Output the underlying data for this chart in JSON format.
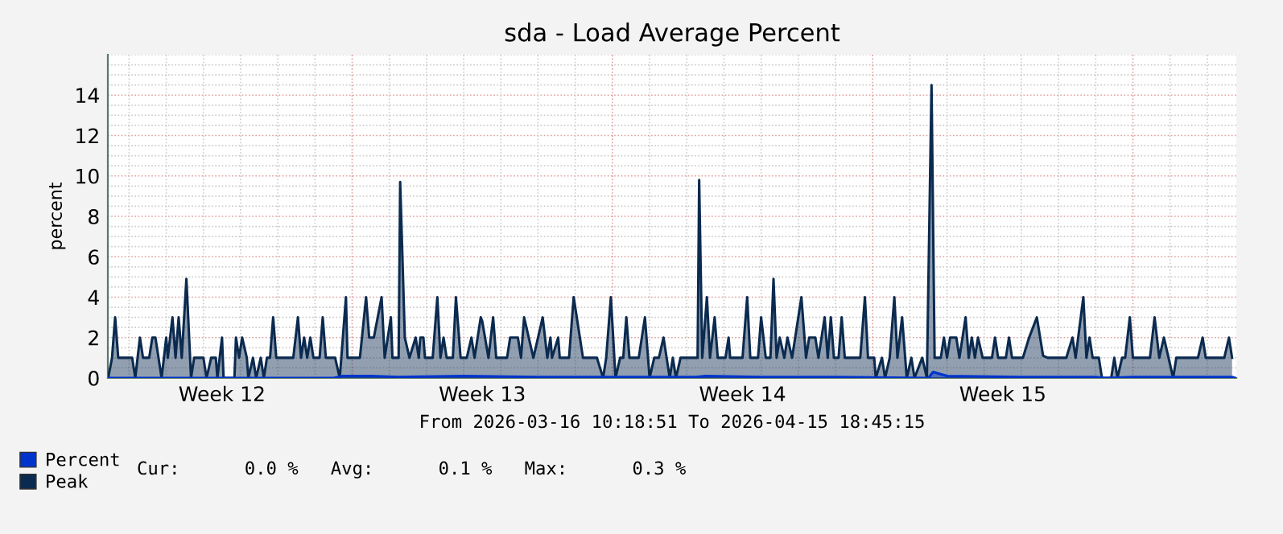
{
  "chart_data": {
    "type": "area",
    "title": "sda - Load Average Percent",
    "xlabel": "From 2026-03-16 10:18:51 To 2026-04-15 18:45:15",
    "ylabel": "percent",
    "xlim": [
      "2026-03-16T10:18",
      "2026-04-15T18:45"
    ],
    "xticks": [
      {
        "value": "2026-03-19T12:00",
        "label": "Week 12"
      },
      {
        "value": "2026-03-26T12:00",
        "label": "Week 13"
      },
      {
        "value": "2026-04-02T12:00",
        "label": "Week 14"
      },
      {
        "value": "2026-04-09T12:00",
        "label": "Week 15"
      }
    ],
    "ylim": [
      0,
      16
    ],
    "yticks": [
      0,
      2,
      4,
      6,
      8,
      10,
      12,
      14
    ],
    "grid": true,
    "legend": "bottom left",
    "annotations": [
      "Cur:      0.0 %   Avg:      0.1 %   Max:      0.3 %"
    ],
    "series": [
      {
        "name": "Percent",
        "color": "#0033cc",
        "x": [
          "2026-03-16T10:30",
          "2026-03-22T12:00",
          "2026-03-22T18:00",
          "2026-03-23T12:00",
          "2026-03-24T06:00",
          "2026-03-26T00:00",
          "2026-03-28T00:00",
          "2026-03-30T00:00",
          "2026-04-01T06:00",
          "2026-04-01T12:00",
          "2026-04-03T00:00",
          "2026-04-05T00:00",
          "2026-04-07T12:00",
          "2026-04-07T15:00",
          "2026-04-08T00:00",
          "2026-04-10T00:00",
          "2026-04-12T00:00",
          "2026-04-12T06:00",
          "2026-04-13T00:00",
          "2026-04-15T16:00",
          "2026-04-15T18:00"
        ],
        "values": [
          0,
          0,
          0.1,
          0.1,
          0.05,
          0.1,
          0.05,
          0.05,
          0.05,
          0.1,
          0.05,
          0.05,
          0,
          0.3,
          0.1,
          0.05,
          0.05,
          0,
          0.05,
          0.05,
          0
        ]
      },
      {
        "name": "Peak",
        "color": "#0b2a4f",
        "x": [
          "2026-03-16T10:30",
          "2026-03-16T13:00",
          "2026-03-16T15:00",
          "2026-03-16T17:00",
          "2026-03-17T02:00",
          "2026-03-17T04:00",
          "2026-03-17T07:00",
          "2026-03-17T09:00",
          "2026-03-17T13:00",
          "2026-03-17T15:00",
          "2026-03-17T17:00",
          "2026-03-17T19:00",
          "2026-03-17T21:00",
          "2026-03-18T00:00",
          "2026-03-18T01:00",
          "2026-03-18T04:00",
          "2026-03-18T06:00",
          "2026-03-18T08:00",
          "2026-03-18T10:00",
          "2026-03-18T13:00",
          "2026-03-18T16:00",
          "2026-03-18T18:00",
          "2026-03-19T00:00",
          "2026-03-19T02:00",
          "2026-03-19T05:00",
          "2026-03-19T08:00",
          "2026-03-19T09:00",
          "2026-03-19T12:00",
          "2026-03-19T13:00",
          "2026-03-19T20:00",
          "2026-03-19T21:00",
          "2026-03-19T23:00",
          "2026-03-20T01:00",
          "2026-03-20T04:00",
          "2026-03-20T05:00",
          "2026-03-20T08:00",
          "2026-03-20T10:00",
          "2026-03-20T13:00",
          "2026-03-20T15:00",
          "2026-03-20T17:00",
          "2026-03-20T19:00",
          "2026-03-20T21:00",
          "2026-03-20T23:00",
          "2026-03-21T10:00",
          "2026-03-21T13:00",
          "2026-03-21T15:00",
          "2026-03-21T17:00",
          "2026-03-21T19:00",
          "2026-03-21T21:00",
          "2026-03-21T23:00",
          "2026-03-22T03:00",
          "2026-03-22T05:00",
          "2026-03-22T07:00",
          "2026-03-22T13:00",
          "2026-03-22T16:00",
          "2026-03-22T17:00",
          "2026-03-22T20:00",
          "2026-03-22T21:00",
          "2026-03-23T05:00",
          "2026-03-23T09:00",
          "2026-03-23T11:00",
          "2026-03-23T14:00",
          "2026-03-23T19:00",
          "2026-03-23T21:00",
          "2026-03-24T01:00",
          "2026-03-24T02:00",
          "2026-03-24T06:00",
          "2026-03-24T07:00",
          "2026-03-24T10:00",
          "2026-03-24T13:00",
          "2026-03-24T17:00",
          "2026-03-24T19:00",
          "2026-03-24T20:00",
          "2026-03-24T22:00",
          "2026-03-24T23:00",
          "2026-03-25T04:00",
          "2026-03-25T07:00",
          "2026-03-25T09:00",
          "2026-03-25T11:00",
          "2026-03-25T13:00",
          "2026-03-25T17:00",
          "2026-03-25T19:00",
          "2026-03-25T22:00",
          "2026-03-26T02:00",
          "2026-03-26T05:00",
          "2026-03-26T07:00",
          "2026-03-26T11:00",
          "2026-03-26T12:00",
          "2026-03-26T16:00",
          "2026-03-26T19:00",
          "2026-03-26T21:00",
          "2026-03-27T04:00",
          "2026-03-27T06:00",
          "2026-03-27T11:00",
          "2026-03-27T13:00",
          "2026-03-27T15:00",
          "2026-03-27T18:00",
          "2026-03-27T21:00",
          "2026-03-28T03:00",
          "2026-03-28T06:00",
          "2026-03-28T08:00",
          "2026-03-28T09:00",
          "2026-03-28T13:00",
          "2026-03-28T14:00",
          "2026-03-28T20:00",
          "2026-03-28T23:00",
          "2026-03-29T03:00",
          "2026-03-29T05:00",
          "2026-03-29T14:00",
          "2026-03-29T18:00",
          "2026-03-29T20:00",
          "2026-03-29T23:00",
          "2026-03-30T02:00",
          "2026-03-30T05:00",
          "2026-03-30T07:00",
          "2026-03-30T09:00",
          "2026-03-30T11:00",
          "2026-03-30T17:00",
          "2026-03-30T21:00",
          "2026-03-31T00:00",
          "2026-03-31T03:00",
          "2026-03-31T06:00",
          "2026-03-31T09:00",
          "2026-03-31T11:00",
          "2026-03-31T13:00",
          "2026-03-31T15:00",
          "2026-03-31T17:00",
          "2026-03-31T20:00",
          "2026-04-01T07:00",
          "2026-04-01T08:00",
          "2026-04-01T10:00",
          "2026-04-01T13:00",
          "2026-04-01T15:00",
          "2026-04-01T18:00",
          "2026-04-01T20:00",
          "2026-04-02T01:00",
          "2026-04-02T03:00",
          "2026-04-02T04:00",
          "2026-04-02T12:00",
          "2026-04-02T15:00",
          "2026-04-02T17:00",
          "2026-04-02T22:00",
          "2026-04-03T00:00",
          "2026-04-03T03:00",
          "2026-04-03T06:00",
          "2026-04-03T08:00",
          "2026-04-03T10:00",
          "2026-04-03T12:00",
          "2026-04-03T15:00",
          "2026-04-03T17:00",
          "2026-04-03T20:00",
          "2026-04-03T22:00",
          "2026-04-04T02:00",
          "2026-04-04T05:00",
          "2026-04-04T07:00",
          "2026-04-04T11:00",
          "2026-04-04T13:00",
          "2026-04-04T17:00",
          "2026-04-04T19:00",
          "2026-04-04T21:00",
          "2026-04-04T23:00",
          "2026-04-05T02:00",
          "2026-04-05T04:00",
          "2026-04-05T06:00",
          "2026-04-05T16:00",
          "2026-04-05T19:00",
          "2026-04-05T21:00",
          "2026-04-06T01:00",
          "2026-04-06T02:00",
          "2026-04-06T06:00",
          "2026-04-06T08:00",
          "2026-04-06T11:00",
          "2026-04-06T14:00",
          "2026-04-06T16:00",
          "2026-04-06T19:00",
          "2026-04-06T22:00",
          "2026-04-07T01:00",
          "2026-04-07T03:00",
          "2026-04-07T08:00",
          "2026-04-07T11:00",
          "2026-04-07T14:00",
          "2026-04-07T16:00",
          "2026-04-07T20:00",
          "2026-04-07T22:00",
          "2026-04-08T00:00",
          "2026-04-08T02:00",
          "2026-04-08T06:00",
          "2026-04-08T08:00",
          "2026-04-08T12:00",
          "2026-04-08T14:00",
          "2026-04-08T16:00",
          "2026-04-08T18:00",
          "2026-04-08T20:00",
          "2026-04-08T23:00",
          "2026-04-09T05:00",
          "2026-04-09T07:00",
          "2026-04-09T09:00",
          "2026-04-09T14:00",
          "2026-04-09T16:00",
          "2026-04-09T18:00",
          "2026-04-10T01:00",
          "2026-04-10T05:00",
          "2026-04-10T10:00",
          "2026-04-10T14:00",
          "2026-04-10T17:00",
          "2026-04-11T05:00",
          "2026-04-11T09:00",
          "2026-04-11T11:00",
          "2026-04-11T16:00",
          "2026-04-11T18:00",
          "2026-04-11T20:00",
          "2026-04-11T22:00",
          "2026-04-12T02:00",
          "2026-04-12T04:00",
          "2026-04-12T10:00",
          "2026-04-12T12:00",
          "2026-04-12T14:00",
          "2026-04-12T17:00",
          "2026-04-12T19:00",
          "2026-04-12T22:00",
          "2026-04-13T00:00",
          "2026-04-13T11:00",
          "2026-04-13T14:00",
          "2026-04-13T17:00",
          "2026-04-13T20:00",
          "2026-04-13T23:00",
          "2026-04-14T02:00",
          "2026-04-14T04:00",
          "2026-04-14T18:00",
          "2026-04-14T21:00",
          "2026-04-14T23:00",
          "2026-04-15T11:00",
          "2026-04-15T14:00",
          "2026-04-15T16:00"
        ],
        "values": [
          0,
          1,
          3,
          1,
          1,
          0,
          2,
          1,
          1,
          2,
          2,
          1,
          0,
          2,
          1,
          3,
          1,
          3,
          1,
          4.9,
          0,
          1,
          1,
          0,
          1,
          1,
          0,
          2,
          0,
          0,
          2,
          1,
          2,
          1,
          0,
          1,
          0,
          1,
          0,
          1,
          1,
          3,
          1,
          1,
          3,
          1,
          2,
          1,
          2,
          1,
          1,
          3,
          1,
          1,
          0,
          1,
          4,
          1,
          1,
          4,
          2,
          2,
          4,
          1,
          3,
          1,
          1,
          9.7,
          2,
          1,
          2,
          1,
          2,
          2,
          1,
          1,
          4,
          1,
          2,
          1,
          1,
          4,
          1,
          1,
          2,
          1,
          3,
          2.8,
          1,
          3,
          1,
          1,
          2,
          2,
          1,
          3,
          2,
          1,
          3,
          1,
          2,
          1,
          2,
          1,
          1,
          4,
          2,
          1,
          1,
          0,
          1,
          4,
          0,
          1,
          1,
          3,
          1,
          1,
          3,
          0,
          1,
          1,
          2,
          1,
          0,
          1,
          0,
          1,
          1,
          9.8,
          1,
          4,
          1,
          3,
          1,
          1,
          2,
          1,
          1,
          4,
          1,
          1,
          3,
          1,
          1,
          4.9,
          1,
          2,
          1,
          2,
          1,
          2,
          4,
          1,
          2,
          2,
          1,
          3,
          1,
          3,
          1,
          1,
          3,
          1,
          1,
          4,
          1,
          1,
          0,
          1,
          0,
          1,
          4,
          1,
          3,
          0,
          1,
          0,
          1,
          0,
          14.5,
          1,
          1,
          2,
          1,
          2,
          2,
          1,
          3,
          1,
          2,
          1,
          2,
          1,
          1,
          2,
          1,
          1,
          2,
          1,
          1,
          2,
          3,
          1.1,
          1,
          1,
          2,
          1,
          4,
          1,
          2,
          1,
          1,
          0,
          0,
          1,
          0,
          1,
          1,
          3,
          1,
          1,
          3,
          1,
          2,
          1,
          0,
          1,
          1,
          2,
          1,
          1,
          2,
          1
        ]
      }
    ]
  }
}
